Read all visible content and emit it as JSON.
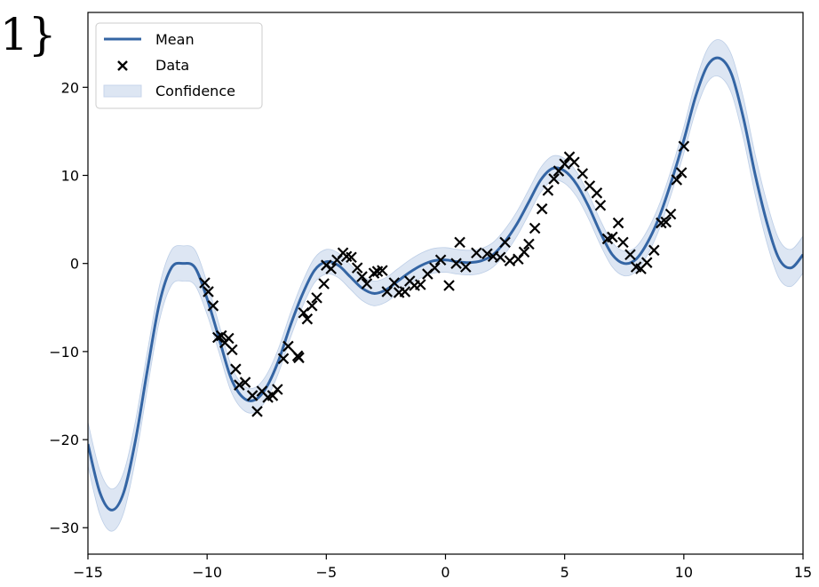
{
  "corner_text": "1}",
  "chart_data": {
    "type": "line",
    "xlim": [
      -15,
      15
    ],
    "ylim": [
      -33,
      28.5
    ],
    "x_ticks": [
      -15,
      -10,
      -5,
      0,
      5,
      10,
      15
    ],
    "y_ticks": [
      -30,
      -20,
      -10,
      0,
      10,
      20
    ],
    "grid": false,
    "legend": {
      "placement": "upper-left",
      "entries": [
        {
          "label": "Mean",
          "kind": "line"
        },
        {
          "label": "Data",
          "kind": "marker"
        },
        {
          "label": "Confidence",
          "kind": "band"
        }
      ]
    },
    "colors": {
      "mean": "#3465a4",
      "band": "#dde6f3",
      "band_edge": "#9fb7da",
      "data": "#000000"
    },
    "series": [
      {
        "name": "Mean",
        "x": [
          -15,
          -14.5,
          -14,
          -13.5,
          -13,
          -12.5,
          -12,
          -11.5,
          -11,
          -10.5,
          -10,
          -9.5,
          -9,
          -8.5,
          -8,
          -7.5,
          -7,
          -6.5,
          -6,
          -5.5,
          -5,
          -4.5,
          -4,
          -3.5,
          -3,
          -2.5,
          -2,
          -1.5,
          -1,
          -0.5,
          0,
          0.5,
          1,
          1.5,
          2,
          2.5,
          3,
          3.5,
          4,
          4.5,
          5,
          5.5,
          6,
          6.5,
          7,
          7.5,
          8,
          8.5,
          9,
          9.5,
          10,
          10.5,
          11,
          11.5,
          12,
          12.5,
          13,
          13.5,
          14,
          14.5,
          15
        ],
        "y": [
          -20.5,
          -26.0,
          -28.0,
          -26.0,
          -20.0,
          -12.0,
          -4.5,
          -0.5,
          0.0,
          -0.5,
          -4.0,
          -8.5,
          -13.0,
          -15.2,
          -15.5,
          -14.0,
          -11.0,
          -7.0,
          -3.5,
          -0.8,
          0.2,
          -0.2,
          -1.5,
          -2.8,
          -3.4,
          -3.0,
          -2.0,
          -1.0,
          -0.2,
          0.3,
          0.4,
          0.2,
          0.1,
          0.3,
          1.0,
          2.5,
          4.5,
          7.0,
          9.5,
          10.8,
          10.5,
          9.0,
          6.5,
          3.5,
          1.0,
          0.0,
          0.5,
          2.5,
          5.5,
          9.5,
          14.0,
          19.0,
          22.5,
          23.3,
          21.5,
          16.5,
          10.0,
          4.5,
          0.5,
          -0.5,
          1.0
        ]
      },
      {
        "name": "Confidence",
        "halfwidth": [
          2.5,
          2.5,
          2.4,
          2.3,
          2.2,
          2.1,
          2.0,
          2.0,
          2.0,
          2.0,
          1.8,
          1.6,
          1.5,
          1.4,
          1.4,
          1.4,
          1.4,
          1.4,
          1.4,
          1.4,
          1.4,
          1.4,
          1.4,
          1.4,
          1.4,
          1.4,
          1.4,
          1.4,
          1.4,
          1.4,
          1.4,
          1.4,
          1.4,
          1.4,
          1.4,
          1.4,
          1.4,
          1.4,
          1.4,
          1.4,
          1.4,
          1.4,
          1.4,
          1.4,
          1.4,
          1.4,
          1.4,
          1.4,
          1.4,
          1.4,
          1.5,
          1.7,
          1.9,
          2.1,
          2.2,
          2.3,
          2.3,
          2.3,
          2.2,
          2.1,
          2.1
        ]
      },
      {
        "name": "Data",
        "points": [
          [
            -10.1,
            -2.2
          ],
          [
            -9.95,
            -3.2
          ],
          [
            -9.75,
            -4.8
          ],
          [
            -9.55,
            -8.4
          ],
          [
            -9.4,
            -8.2
          ],
          [
            -9.25,
            -9.0
          ],
          [
            -9.1,
            -8.5
          ],
          [
            -8.95,
            -9.8
          ],
          [
            -8.8,
            -12.0
          ],
          [
            -8.65,
            -13.8
          ],
          [
            -8.4,
            -13.5
          ],
          [
            -8.1,
            -15.0
          ],
          [
            -7.9,
            -16.8
          ],
          [
            -7.7,
            -14.5
          ],
          [
            -7.45,
            -15.2
          ],
          [
            -7.25,
            -15.0
          ],
          [
            -7.05,
            -14.3
          ],
          [
            -6.8,
            -10.8
          ],
          [
            -6.6,
            -9.4
          ],
          [
            -6.2,
            -10.5
          ],
          [
            -6.15,
            -10.7
          ],
          [
            -5.95,
            -5.6
          ],
          [
            -5.8,
            -6.3
          ],
          [
            -5.6,
            -4.8
          ],
          [
            -5.4,
            -3.9
          ],
          [
            -5.1,
            -2.3
          ],
          [
            -5.0,
            -0.2
          ],
          [
            -4.8,
            -0.6
          ],
          [
            -4.55,
            0.4
          ],
          [
            -4.3,
            1.2
          ],
          [
            -4.15,
            0.8
          ],
          [
            -3.95,
            0.7
          ],
          [
            -3.7,
            -0.5
          ],
          [
            -3.5,
            -1.5
          ],
          [
            -3.3,
            -2.3
          ],
          [
            -3.0,
            -1.1
          ],
          [
            -2.85,
            -0.9
          ],
          [
            -2.65,
            -0.8
          ],
          [
            -2.45,
            -3.2
          ],
          [
            -2.15,
            -2.2
          ],
          [
            -1.95,
            -3.3
          ],
          [
            -1.7,
            -3.2
          ],
          [
            -1.5,
            -2.0
          ],
          [
            -1.3,
            -2.5
          ],
          [
            -1.05,
            -2.4
          ],
          [
            -0.75,
            -1.2
          ],
          [
            -0.45,
            -0.5
          ],
          [
            -0.2,
            0.4
          ],
          [
            0.15,
            -2.5
          ],
          [
            0.45,
            0.0
          ],
          [
            0.6,
            2.4
          ],
          [
            0.85,
            -0.4
          ],
          [
            1.3,
            1.2
          ],
          [
            1.75,
            1.1
          ],
          [
            2.0,
            0.8
          ],
          [
            2.3,
            0.7
          ],
          [
            2.5,
            2.4
          ],
          [
            2.7,
            0.3
          ],
          [
            3.05,
            0.5
          ],
          [
            3.3,
            1.3
          ],
          [
            3.5,
            2.2
          ],
          [
            3.75,
            4.0
          ],
          [
            4.05,
            6.2
          ],
          [
            4.3,
            8.3
          ],
          [
            4.55,
            9.6
          ],
          [
            4.75,
            10.5
          ],
          [
            5.0,
            11.3
          ],
          [
            5.2,
            12.1
          ],
          [
            5.4,
            11.5
          ],
          [
            5.75,
            10.2
          ],
          [
            6.05,
            8.8
          ],
          [
            6.35,
            8.0
          ],
          [
            6.5,
            6.6
          ],
          [
            6.8,
            2.8
          ],
          [
            7.0,
            3.0
          ],
          [
            7.25,
            4.6
          ],
          [
            7.45,
            2.4
          ],
          [
            7.75,
            1.0
          ],
          [
            8.0,
            -0.4
          ],
          [
            8.2,
            -0.6
          ],
          [
            8.45,
            0.1
          ],
          [
            8.75,
            1.5
          ],
          [
            9.05,
            4.6
          ],
          [
            9.25,
            4.7
          ],
          [
            9.45,
            5.6
          ],
          [
            9.7,
            9.5
          ],
          [
            9.9,
            10.3
          ],
          [
            10.0,
            13.3
          ]
        ]
      }
    ]
  }
}
